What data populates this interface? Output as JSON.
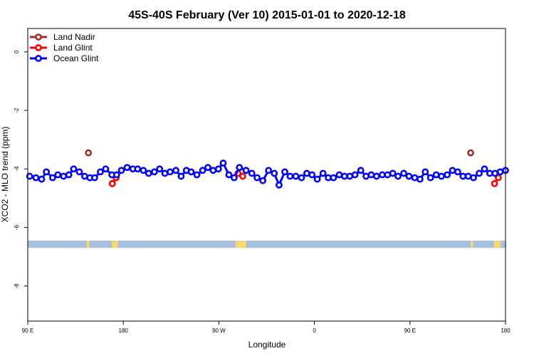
{
  "chart_data": {
    "type": "line",
    "title": "45S-40S February (Ver 10)   2015-01-01 to 2020-12-18",
    "xlabel": "Longitude",
    "ylabel": "XCO2 - MLO trend (ppm)",
    "xlim": [
      0,
      100
    ],
    "ylim": [
      -9.2,
      0.8
    ],
    "x_ticks": [
      {
        "pos": 0,
        "label": "90 E"
      },
      {
        "pos": 20,
        "label": "180"
      },
      {
        "pos": 40,
        "label": "90 W"
      },
      {
        "pos": 60,
        "label": "0"
      },
      {
        "pos": 80,
        "label": "90 E"
      },
      {
        "pos": 100,
        "label": "180"
      }
    ],
    "y_ticks": [
      0,
      -2,
      -4,
      -6,
      -8
    ],
    "grid": false,
    "legend_position": "top-left",
    "land_band": {
      "y_top": -6.45,
      "y_bottom": -6.7,
      "ocean_color": "#a9bfdf",
      "land_color": "#f7d86c",
      "land_segments": [
        [
          12.3,
          12.9
        ],
        [
          17.6,
          18.9
        ],
        [
          43.5,
          45.7
        ],
        [
          92.7,
          93.2
        ],
        [
          97.6,
          99.0
        ]
      ]
    },
    "series": [
      {
        "name": "Land Nadir",
        "color": "#a52a2a",
        "connect": false,
        "x": [
          12.7,
          92.7
        ],
        "y": [
          -3.45,
          -3.45
        ]
      },
      {
        "name": "Land Glint",
        "color": "#ff0000",
        "connect": true,
        "segments": [
          {
            "x": [
              17.7,
              18.5
            ],
            "y": [
              -4.5,
              -4.3
            ]
          },
          {
            "x": [
              44.0,
              45.0,
              45.7
            ],
            "y": [
              -4.15,
              -4.25,
              -4.05
            ]
          },
          {
            "x": [
              97.7,
              98.5
            ],
            "y": [
              -4.5,
              -4.3
            ]
          }
        ]
      },
      {
        "name": "Ocean Glint",
        "color": "#0000ff",
        "connect": true,
        "x": [
          0.4,
          1.7,
          2.9,
          3.9,
          5.2,
          6.3,
          7.5,
          8.6,
          9.6,
          10.8,
          11.9,
          13.0,
          14.0,
          15.2,
          16.3,
          17.6,
          18.6,
          19.6,
          20.8,
          22.0,
          23.0,
          24.2,
          25.3,
          26.5,
          27.6,
          28.7,
          29.8,
          31.0,
          32.1,
          33.2,
          34.2,
          35.4,
          36.6,
          37.7,
          38.8,
          39.9,
          40.9,
          42.1,
          43.2,
          44.3,
          45.7,
          46.9,
          48.0,
          49.2,
          50.4,
          51.6,
          52.6,
          53.8,
          54.9,
          56.1,
          57.3,
          58.4,
          59.5,
          60.6,
          61.8,
          62.9,
          64.0,
          65.2,
          66.3,
          67.4,
          68.5,
          69.7,
          70.8,
          71.9,
          73.0,
          74.2,
          75.3,
          76.4,
          77.5,
          78.7,
          79.8,
          81.0,
          82.1,
          83.2,
          84.3,
          85.5,
          86.6,
          87.8,
          88.9,
          90.0,
          91.1,
          92.2,
          93.3,
          94.5,
          95.6,
          96.7,
          97.8,
          98.9,
          100.0
        ],
        "y": [
          -4.25,
          -4.3,
          -4.35,
          -4.1,
          -4.3,
          -4.2,
          -4.25,
          -4.2,
          -4.0,
          -4.1,
          -4.25,
          -4.3,
          -4.3,
          -4.1,
          -4.0,
          -4.2,
          -4.2,
          -4.05,
          -3.95,
          -4.0,
          -4.0,
          -4.05,
          -4.15,
          -4.1,
          -4.0,
          -4.15,
          -4.1,
          -4.05,
          -4.25,
          -4.05,
          -4.1,
          -4.2,
          -4.05,
          -3.95,
          -4.05,
          -4.0,
          -3.8,
          -4.2,
          -4.3,
          -3.95,
          -4.05,
          -4.15,
          -4.3,
          -4.4,
          -4.05,
          -4.15,
          -4.55,
          -4.1,
          -4.25,
          -4.25,
          -4.3,
          -4.15,
          -4.2,
          -4.35,
          -4.15,
          -4.3,
          -4.3,
          -4.2,
          -4.25,
          -4.25,
          -4.2,
          -4.05,
          -4.25,
          -4.2,
          -4.25,
          -4.2,
          -4.2,
          -4.15,
          -4.25,
          -4.15,
          -4.25,
          -4.3,
          -4.35,
          -4.1,
          -4.3,
          -4.2,
          -4.25,
          -4.2,
          -4.05,
          -4.1,
          -4.25,
          -4.25,
          -4.3,
          -4.15,
          -4.0,
          -4.15,
          -4.15,
          -4.1,
          -4.05
        ]
      }
    ]
  }
}
